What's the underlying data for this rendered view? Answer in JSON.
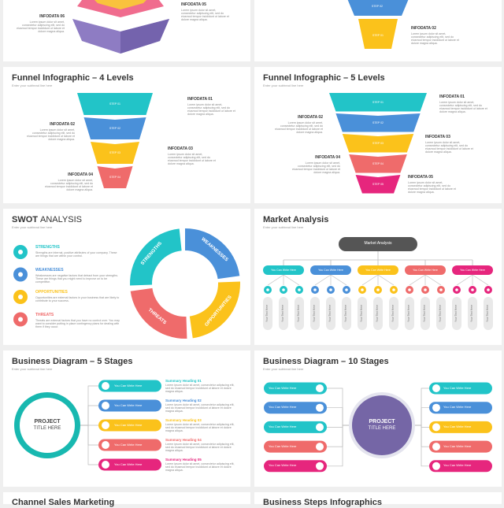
{
  "top_left": {
    "items": [
      {
        "label": "INFODATA 06",
        "text": "Lorem ipsum dolor sit amet, consectetur adipiscing elit, sed do eiusmod tempor incididunt ut labore et dolore magna aliqua."
      },
      {
        "label": "INFODATA 05",
        "text": "Lorem ipsum dolor sit amet, consectetur adipiscing elit, sed do eiusmod tempor incididunt ut labore et dolore magna aliqua."
      }
    ]
  },
  "top_right": {
    "steps": [
      "STEP 02",
      "STEP 01"
    ],
    "items": [
      {
        "label": "INFODATA 02",
        "text": "Lorem ipsum dolor sit amet, consectetur adipiscing elit, sed do eiusmod tempor incididunt ut labore et dolore magna aliqua."
      }
    ]
  },
  "funnel4": {
    "title": "Funnel Infographic – 4 Levels",
    "subtitle": "Enter your subhead line here",
    "steps": [
      "STEP 01",
      "STEP 02",
      "STEP 03",
      "STEP 04"
    ],
    "items": [
      {
        "label": "INFODATA 01",
        "text": "Lorem ipsum dolor sit amet, consectetur adipiscing elit, sed do eiusmod tempor incididunt ut labore et dolore magna aliqua."
      },
      {
        "label": "INFODATA 02",
        "text": "Lorem ipsum dolor sit amet, consectetur adipiscing elit, sed do eiusmod tempor incididunt ut labore et dolore magna aliqua."
      },
      {
        "label": "INFODATA 03",
        "text": "Lorem ipsum dolor sit amet, consectetur adipiscing elit, sed do eiusmod tempor incididunt ut labore et dolore magna aliqua."
      },
      {
        "label": "INFODATA 04",
        "text": "Lorem ipsum dolor sit amet, consectetur adipiscing elit, sed do eiusmod tempor incididunt ut labore et dolore magna aliqua."
      }
    ]
  },
  "funnel5": {
    "title": "Funnel Infographic –  5 Levels",
    "subtitle": "Enter your subhead line here",
    "steps": [
      "STEP 01",
      "STEP 02",
      "STEP 03",
      "STEP 04",
      "STEP 05"
    ],
    "items": [
      {
        "label": "INFODATA 01",
        "text": "Lorem ipsum dolor sit amet, consectetur adipiscing elit, sed do eiusmod tempor incididunt ut labore et dolore magna aliqua."
      },
      {
        "label": "INFODATA 02",
        "text": "Lorem ipsum dolor sit amet, consectetur adipiscing elit, sed do eiusmod tempor incididunt ut labore et dolore magna aliqua."
      },
      {
        "label": "INFODATA 03",
        "text": "Lorem ipsum dolor sit amet, consectetur adipiscing elit, sed do eiusmod tempor incididunt ut labore et dolore magna aliqua."
      },
      {
        "label": "INFODATA 04",
        "text": "Lorem ipsum dolor sit amet, consectetur adipiscing elit, sed do eiusmod tempor incididunt ut labore et dolore magna aliqua."
      },
      {
        "label": "INFODATA 05",
        "text": "Lorem ipsum dolor sit amet, consectetur adipiscing elit, sed do eiusmod tempor incididunt ut labore et dolore magna aliqua."
      }
    ]
  },
  "swot": {
    "title_bold": "SWOT",
    "title": "ANALYSIS",
    "subtitle": "Enter your subhead line here",
    "items": [
      {
        "label": "STRENGTHS",
        "text": "Strengths are internal, positive attributes of your company. These are things that are within your control."
      },
      {
        "label": "WEAKNESSES",
        "text": "Weaknesses are negative factors that detract from your strengths. These are things that you might need to improve on to be competitive."
      },
      {
        "label": "OPPORTUNITIES",
        "text": "Opportunities are external factors in your business that are likely to contribute to your success."
      },
      {
        "label": "THREATS",
        "text": "Threats are external factors that you have no control over. You may want to consider putting in place contingency plans for dealing with them if they occur."
      }
    ],
    "ring": [
      "STRENGTHS",
      "WEAKNESSES",
      "OPPORTUNITIES",
      "THREATS"
    ]
  },
  "market": {
    "title": "Market Analysis",
    "subtitle": "Enter your subhead line here",
    "root": "Market Analysis",
    "groups": [
      {
        "label": "You Can Write Here",
        "items": [
          "Your Text Here",
          "Your Text Here",
          "Your Text Here"
        ]
      },
      {
        "label": "You Can Write Here",
        "items": [
          "Your Text Here",
          "Your Text Here",
          "Your Text Here"
        ]
      },
      {
        "label": "You Can Write Here",
        "items": [
          "Your Text Here",
          "Your Text Here",
          "Your Text Here"
        ]
      },
      {
        "label": "You Can Write Here",
        "items": [
          "Your Text Here",
          "Your Text Here",
          "Your Text Here"
        ]
      },
      {
        "label": "You Can Write Here",
        "items": [
          "Your Text Here",
          "Your Text Here",
          "Your Text Here"
        ]
      }
    ]
  },
  "diagram5": {
    "title": "Business Diagram – 5 Stages",
    "subtitle": "Enter your subhead line here",
    "center": [
      "PROJECT",
      "TITLE HERE"
    ],
    "stages": [
      "You Can Write Here",
      "You Can Write Here",
      "You Can Write Here",
      "You Can Write Here",
      "You Can Write Here"
    ],
    "summaries": [
      {
        "heading": "Summary Heading 01",
        "text": "Lorem ipsum dolor sit amet, consectetur adipiscing elit, sed do eiusmod tempor incididunt ut labore et dolore magna aliqua."
      },
      {
        "heading": "Summary Heading 02",
        "text": "Lorem ipsum dolor sit amet, consectetur adipiscing elit, sed do eiusmod tempor incididunt ut labore et dolore magna aliqua."
      },
      {
        "heading": "Summary Heading 03",
        "text": "Lorem ipsum dolor sit amet, consectetur adipiscing elit, sed do eiusmod tempor incididunt ut labore et dolore magna aliqua."
      },
      {
        "heading": "Summary Heading 04",
        "text": "Lorem ipsum dolor sit amet, consectetur adipiscing elit, sed do eiusmod tempor incididunt ut labore et dolore magna aliqua."
      },
      {
        "heading": "Summary Heading 05",
        "text": "Lorem ipsum dolor sit amet, consectetur adipiscing elit, sed do eiusmod tempor incididunt ut labore et dolore magna aliqua."
      }
    ]
  },
  "diagram10": {
    "title": "Business Diagram – 10 Stages",
    "subtitle": "Enter your subhead line here",
    "center": [
      "PROJECT",
      "TITLE HERE"
    ],
    "left": [
      "You Can Write Here",
      "You Can Write Here",
      "You Can Write Here",
      "You Can Write Here",
      "You Can Write Here"
    ],
    "right": [
      "You Can Write Here",
      "You Can Write Here",
      "You Can Write Here",
      "You Can Write Here",
      "You Can Write Here"
    ]
  },
  "bottom": [
    "Channel Sales Marketing",
    "Business Steps Infographics"
  ]
}
